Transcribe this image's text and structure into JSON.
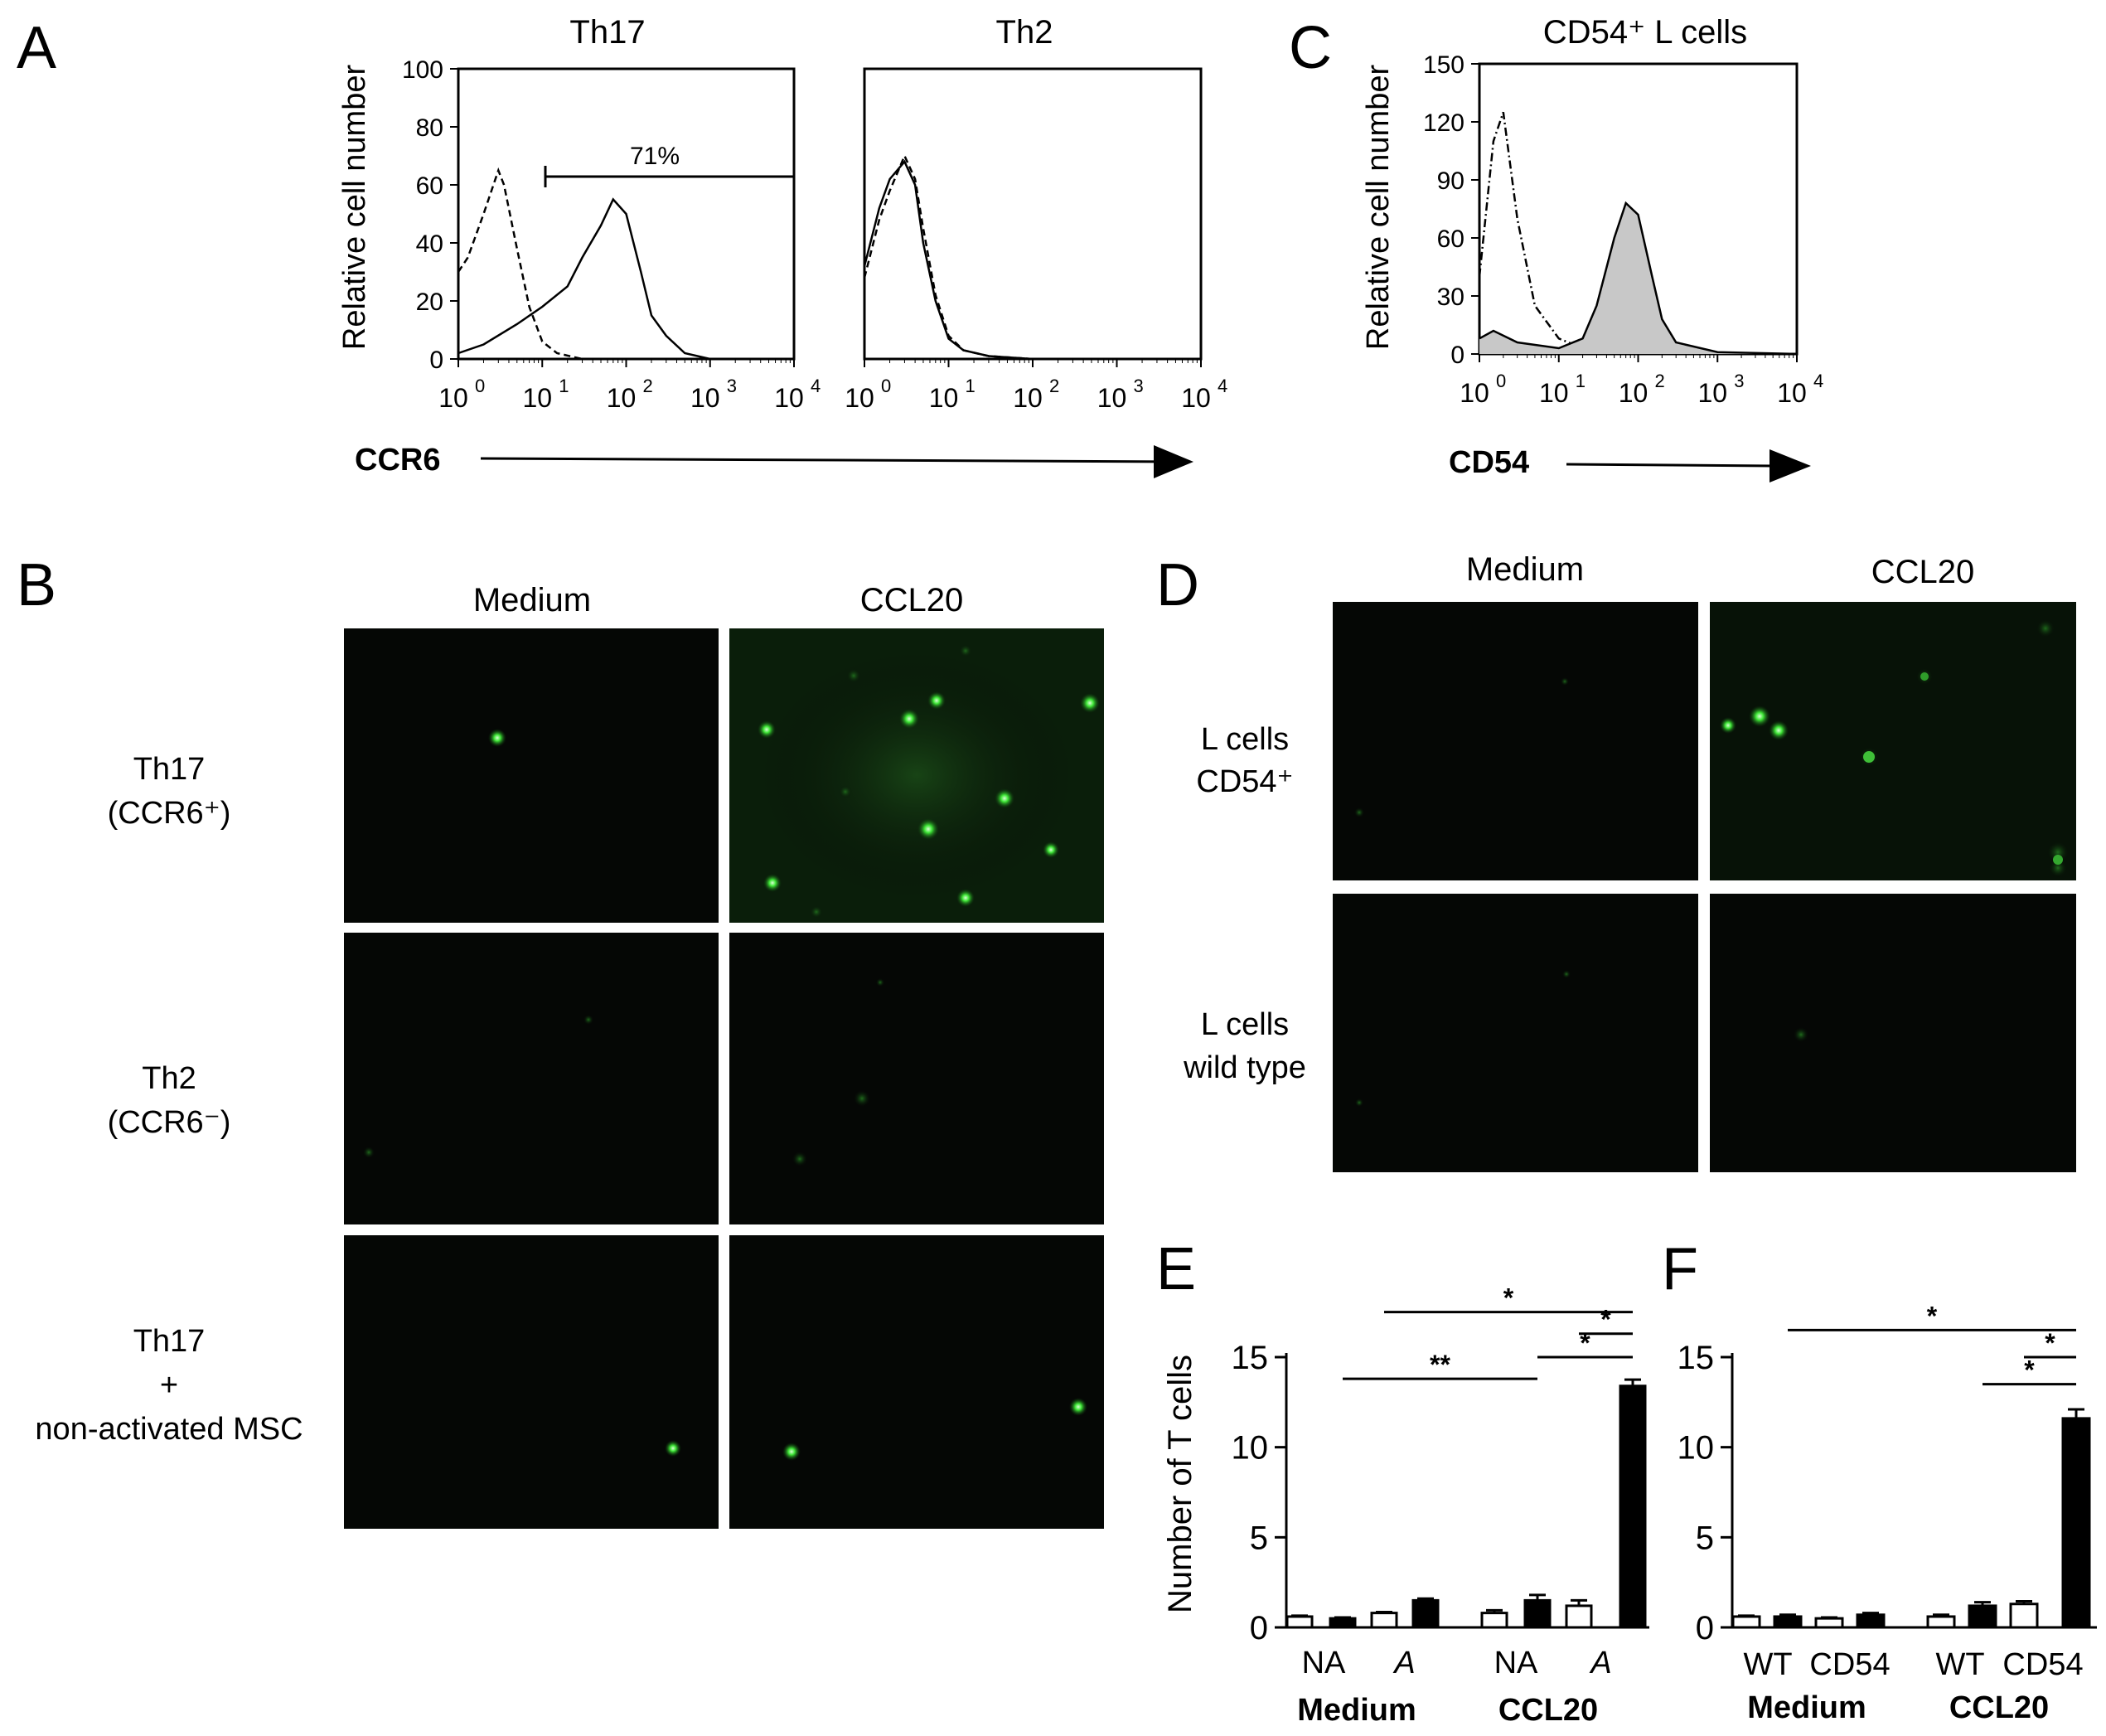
{
  "panel_letters": [
    "A",
    "B",
    "C",
    "D",
    "E",
    "F"
  ],
  "panel_a": {
    "plots": [
      {
        "title": "Th17",
        "gate_label": "71%",
        "y_ticks": [
          "100",
          "80",
          "60",
          "40",
          "20",
          "0"
        ],
        "y_tick_values": [
          100,
          80,
          60,
          40,
          20,
          0
        ],
        "x_tick_exponents": [
          "0",
          "1",
          "2",
          "3",
          "4"
        ],
        "curves": [
          {
            "style": "dashed",
            "points": [
              [
                1.0,
                30
              ],
              [
                1.3,
                35
              ],
              [
                2.0,
                50
              ],
              [
                3.0,
                65
              ],
              [
                3.5,
                60
              ],
              [
                5.0,
                38
              ],
              [
                7.0,
                18
              ],
              [
                10.0,
                6
              ],
              [
                15.0,
                2
              ],
              [
                30.0,
                0
              ],
              [
                10000,
                0
              ]
            ]
          },
          {
            "style": "solid",
            "points": [
              [
                1.0,
                2
              ],
              [
                2.0,
                5
              ],
              [
                5.0,
                12
              ],
              [
                10.0,
                18
              ],
              [
                20.0,
                25
              ],
              [
                30.0,
                35
              ],
              [
                50.0,
                46
              ],
              [
                70.0,
                55
              ],
              [
                100.0,
                50
              ],
              [
                150.0,
                30
              ],
              [
                200.0,
                15
              ],
              [
                300.0,
                8
              ],
              [
                500.0,
                2
              ],
              [
                1000.0,
                0
              ],
              [
                10000,
                0
              ]
            ]
          }
        ]
      },
      {
        "title": "Th2",
        "gate_label": "",
        "y_ticks": [],
        "y_tick_values": [
          100,
          80,
          60,
          40,
          20,
          0
        ],
        "x_tick_exponents": [
          "0",
          "1",
          "2",
          "3",
          "4"
        ],
        "curves": [
          {
            "style": "dashed",
            "points": [
              [
                1.0,
                28
              ],
              [
                1.5,
                48
              ],
              [
                2.0,
                58
              ],
              [
                3.0,
                70
              ],
              [
                4.0,
                62
              ],
              [
                5.0,
                45
              ],
              [
                7.0,
                22
              ],
              [
                10.0,
                8
              ],
              [
                15.0,
                3
              ],
              [
                30.0,
                1
              ],
              [
                100.0,
                0
              ],
              [
                10000,
                0
              ]
            ]
          },
          {
            "style": "solid",
            "points": [
              [
                1.0,
                32
              ],
              [
                1.5,
                52
              ],
              [
                2.0,
                62
              ],
              [
                3.0,
                68
              ],
              [
                4.0,
                60
              ],
              [
                5.0,
                40
              ],
              [
                7.0,
                20
              ],
              [
                10.0,
                7
              ],
              [
                15.0,
                3
              ],
              [
                30.0,
                1
              ],
              [
                100.0,
                0
              ],
              [
                10000,
                0
              ]
            ]
          }
        ]
      }
    ],
    "y_axis_label": "Relative cell number",
    "x_axis_label": "CCR6"
  },
  "panel_c": {
    "title": "CD54⁺ L cells",
    "y_axis_label": "Relative cell number",
    "y_ticks": [
      "150",
      "120",
      "90",
      "60",
      "30",
      "0"
    ],
    "y_tick_values": [
      150,
      120,
      90,
      60,
      30,
      0
    ],
    "x_tick_exponents": [
      "0",
      "1",
      "2",
      "3",
      "4"
    ],
    "x_axis_label": "CD54",
    "curves": [
      {
        "style": "dashdot",
        "points": [
          [
            1.0,
            40
          ],
          [
            1.5,
            110
          ],
          [
            2.0,
            125
          ],
          [
            3.0,
            70
          ],
          [
            5.0,
            25
          ],
          [
            10.0,
            8
          ],
          [
            20.0,
            3
          ],
          [
            50.0,
            0
          ],
          [
            10000,
            0
          ]
        ]
      },
      {
        "style": "filled",
        "points": [
          [
            1.0,
            8
          ],
          [
            1.5,
            12
          ],
          [
            3.0,
            6
          ],
          [
            10.0,
            3
          ],
          [
            20.0,
            8
          ],
          [
            30.0,
            25
          ],
          [
            50.0,
            60
          ],
          [
            70.0,
            78
          ],
          [
            100.0,
            72
          ],
          [
            150.0,
            40
          ],
          [
            200.0,
            18
          ],
          [
            300.0,
            6
          ],
          [
            1000.0,
            1
          ],
          [
            10000,
            0
          ]
        ]
      }
    ]
  },
  "panel_b": {
    "col_headers": [
      "Medium",
      "CCL20"
    ],
    "row_labels": [
      [
        "Th17",
        "(CCR6⁺)"
      ],
      [
        "Th2",
        "(CCR6⁻)"
      ],
      [
        "Th17",
        "+",
        "non-activated MSC"
      ]
    ]
  },
  "panel_d": {
    "col_headers": [
      "Medium",
      "CCL20"
    ],
    "row_labels": [
      [
        "L cells",
        "CD54⁺"
      ],
      [
        "L cells",
        "wild type"
      ]
    ]
  },
  "chart_data": [
    {
      "panel": "E",
      "type": "bar",
      "ylabel": "Number of T cells",
      "ylim": [
        0,
        15
      ],
      "y_ticks": [
        "15",
        "10",
        "5",
        "0"
      ],
      "y_tick_values": [
        15,
        10,
        5,
        0
      ],
      "bar_labels": [
        "NA",
        "A",
        "NA",
        "A"
      ],
      "groups": [
        "Medium",
        "CCL20"
      ],
      "bars": [
        {
          "group": "Medium",
          "label": "NA",
          "fill": "white",
          "value": 0.6,
          "err": 0.05
        },
        {
          "group": "Medium",
          "label": "NA",
          "fill": "black",
          "value": 0.5,
          "err": 0.05
        },
        {
          "group": "Medium",
          "label": "A",
          "fill": "white",
          "value": 0.8,
          "err": 0.05
        },
        {
          "group": "Medium",
          "label": "A",
          "fill": "black",
          "value": 1.5,
          "err": 0.1
        },
        {
          "group": "CCL20",
          "label": "NA",
          "fill": "white",
          "value": 0.8,
          "err": 0.15
        },
        {
          "group": "CCL20",
          "label": "NA",
          "fill": "black",
          "value": 1.5,
          "err": 0.3
        },
        {
          "group": "CCL20",
          "label": "A",
          "fill": "white",
          "value": 1.2,
          "err": 0.3
        },
        {
          "group": "CCL20",
          "label": "A",
          "fill": "black",
          "value": 13.4,
          "err": 0.35
        }
      ],
      "significance": [
        {
          "from": 2,
          "to": 7,
          "label": "*",
          "level": 17.5
        },
        {
          "from": 6,
          "to": 7,
          "label": "*",
          "level": 16.3
        },
        {
          "from": 5,
          "to": 7,
          "label": "*",
          "level": 15.0
        },
        {
          "from": 1,
          "to": 5,
          "label": "**",
          "level": 13.8
        }
      ]
    },
    {
      "panel": "F",
      "type": "bar",
      "ylabel": "",
      "ylim": [
        0,
        15
      ],
      "y_ticks": [
        "15",
        "10",
        "5",
        "0"
      ],
      "y_tick_values": [
        15,
        10,
        5,
        0
      ],
      "bar_labels": [
        "WT",
        "CD54",
        "WT",
        "CD54"
      ],
      "groups": [
        "Medium",
        "CCL20"
      ],
      "bars": [
        {
          "group": "Medium",
          "label": "WT",
          "fill": "white",
          "value": 0.6,
          "err": 0.05
        },
        {
          "group": "Medium",
          "label": "WT",
          "fill": "black",
          "value": 0.6,
          "err": 0.1
        },
        {
          "group": "Medium",
          "label": "CD54",
          "fill": "white",
          "value": 0.5,
          "err": 0.05
        },
        {
          "group": "Medium",
          "label": "CD54",
          "fill": "black",
          "value": 0.7,
          "err": 0.1
        },
        {
          "group": "CCL20",
          "label": "WT",
          "fill": "white",
          "value": 0.6,
          "err": 0.1
        },
        {
          "group": "CCL20",
          "label": "WT",
          "fill": "black",
          "value": 1.2,
          "err": 0.2
        },
        {
          "group": "CCL20",
          "label": "CD54",
          "fill": "white",
          "value": 1.3,
          "err": 0.15
        },
        {
          "group": "CCL20",
          "label": "CD54",
          "fill": "black",
          "value": 11.6,
          "err": 0.5
        }
      ],
      "significance": [
        {
          "from": 1,
          "to": 7,
          "label": "*",
          "level": 16.5
        },
        {
          "from": 6,
          "to": 7,
          "label": "*",
          "level": 15.0
        },
        {
          "from": 5,
          "to": 7,
          "label": "*",
          "level": 13.5
        }
      ]
    }
  ],
  "colors": {
    "ink": "#000000",
    "micro_bg": "#050705",
    "gfp": "#39e52f",
    "hist_fill": "#c8c8c8"
  }
}
